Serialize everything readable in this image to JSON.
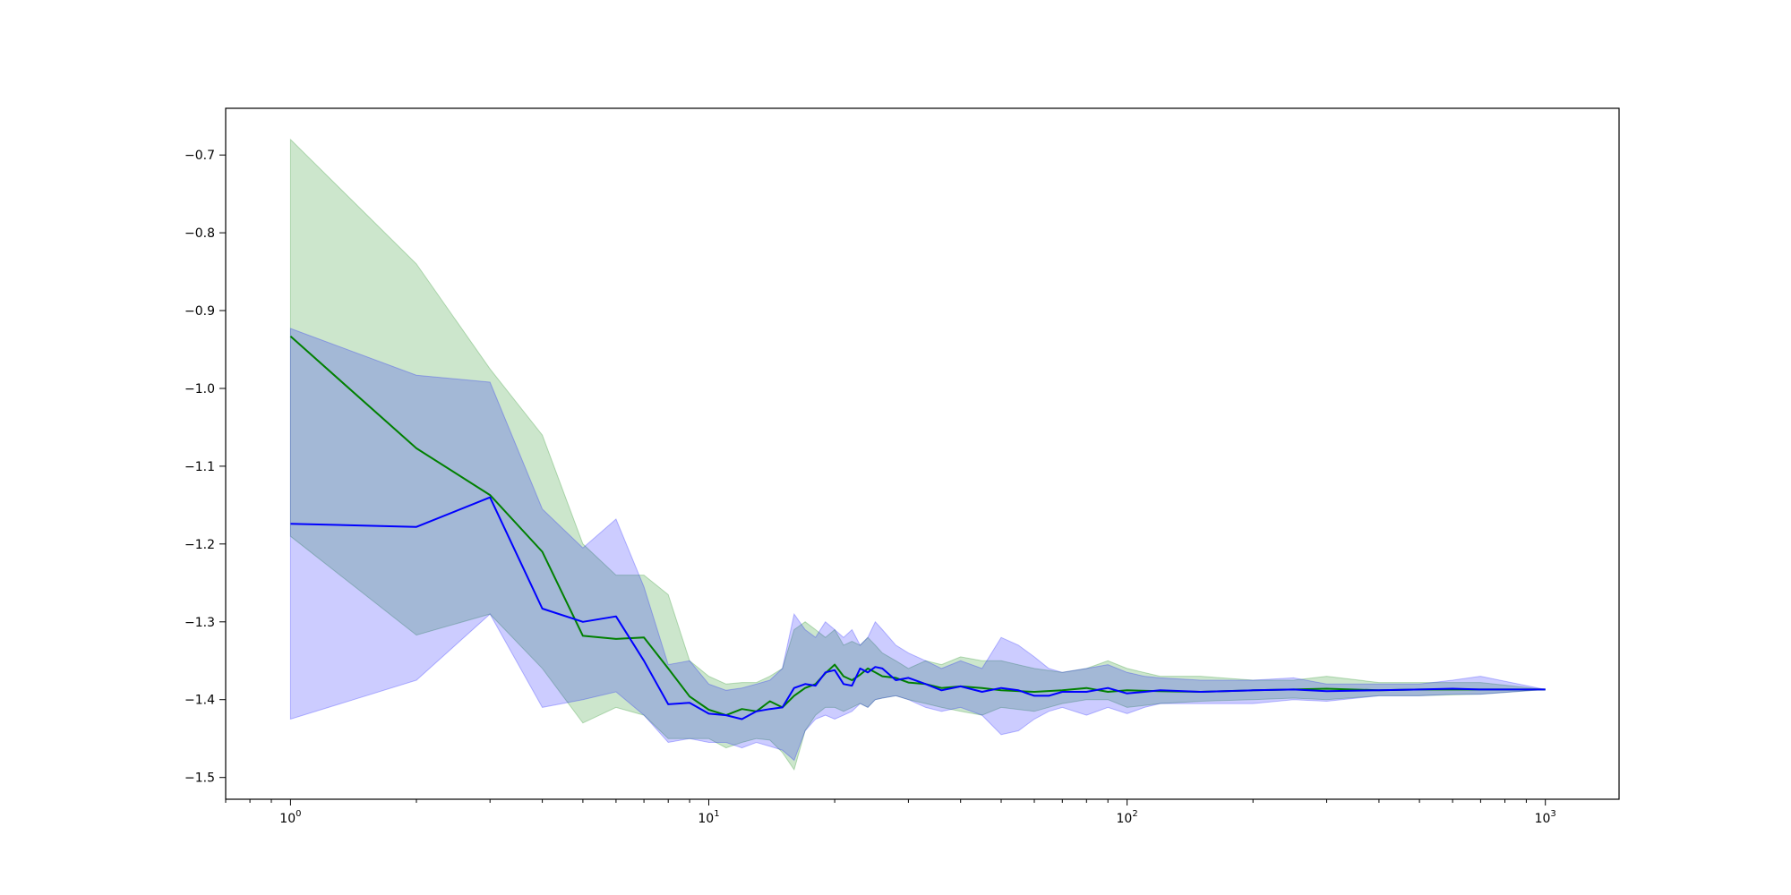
{
  "chart_data": {
    "type": "line",
    "title": "",
    "xlabel": "",
    "ylabel": "",
    "x_scale": "log",
    "xlim": [
      0.7,
      1500
    ],
    "ylim": [
      -1.528,
      -0.64
    ],
    "grid": false,
    "legend": "none",
    "x_ticks": [
      {
        "value": 1,
        "base": "10",
        "exp": "0"
      },
      {
        "value": 10,
        "base": "10",
        "exp": "1"
      },
      {
        "value": 100,
        "base": "10",
        "exp": "2"
      },
      {
        "value": 1000,
        "base": "10",
        "exp": "3"
      }
    ],
    "y_ticks": [
      {
        "value": -0.7,
        "label": "−0.7"
      },
      {
        "value": -0.8,
        "label": "−0.8"
      },
      {
        "value": -0.9,
        "label": "−0.9"
      },
      {
        "value": -1.0,
        "label": "−1.0"
      },
      {
        "value": -1.1,
        "label": "−1.1"
      },
      {
        "value": -1.2,
        "label": "−1.2"
      },
      {
        "value": -1.3,
        "label": "−1.3"
      },
      {
        "value": -1.4,
        "label": "−1.4"
      },
      {
        "value": -1.5,
        "label": "−1.5"
      }
    ],
    "series": [
      {
        "color": "#008000",
        "band_color": "#008000",
        "band_opacity": 0.2,
        "x": [
          1,
          2,
          3,
          4,
          5,
          6,
          7,
          8,
          9,
          10,
          11,
          12,
          13,
          14,
          15,
          16,
          17,
          18,
          19,
          20,
          21,
          22,
          23,
          24,
          25,
          26,
          28,
          30,
          33,
          36,
          40,
          45,
          50,
          60,
          70,
          80,
          90,
          100,
          120,
          150,
          200,
          250,
          300,
          400,
          500,
          700,
          1000
        ],
        "y": [
          -0.933,
          -1.077,
          -1.137,
          -1.21,
          -1.318,
          -1.322,
          -1.32,
          -1.36,
          -1.396,
          -1.413,
          -1.42,
          -1.412,
          -1.415,
          -1.402,
          -1.41,
          -1.395,
          -1.385,
          -1.38,
          -1.366,
          -1.355,
          -1.37,
          -1.375,
          -1.368,
          -1.36,
          -1.365,
          -1.37,
          -1.372,
          -1.378,
          -1.38,
          -1.385,
          -1.383,
          -1.385,
          -1.388,
          -1.39,
          -1.388,
          -1.385,
          -1.39,
          -1.388,
          -1.389,
          -1.39,
          -1.388,
          -1.387,
          -1.386,
          -1.388,
          -1.387,
          -1.387,
          -1.387
        ],
        "lower": [
          -1.19,
          -1.317,
          -1.29,
          -1.36,
          -1.43,
          -1.41,
          -1.42,
          -1.45,
          -1.45,
          -1.45,
          -1.462,
          -1.455,
          -1.45,
          -1.452,
          -1.468,
          -1.49,
          -1.44,
          -1.42,
          -1.41,
          -1.41,
          -1.415,
          -1.41,
          -1.405,
          -1.41,
          -1.4,
          -1.398,
          -1.395,
          -1.4,
          -1.405,
          -1.41,
          -1.415,
          -1.42,
          -1.41,
          -1.415,
          -1.405,
          -1.4,
          -1.4,
          -1.41,
          -1.405,
          -1.402,
          -1.4,
          -1.398,
          -1.4,
          -1.395,
          -1.395,
          -1.393,
          -1.387
        ],
        "upper": [
          -0.68,
          -0.84,
          -0.975,
          -1.06,
          -1.2,
          -1.24,
          -1.24,
          -1.265,
          -1.35,
          -1.37,
          -1.38,
          -1.378,
          -1.378,
          -1.37,
          -1.36,
          -1.31,
          -1.3,
          -1.31,
          -1.32,
          -1.31,
          -1.33,
          -1.325,
          -1.33,
          -1.32,
          -1.33,
          -1.34,
          -1.35,
          -1.36,
          -1.35,
          -1.355,
          -1.345,
          -1.35,
          -1.35,
          -1.36,
          -1.365,
          -1.36,
          -1.35,
          -1.36,
          -1.37,
          -1.37,
          -1.375,
          -1.375,
          -1.37,
          -1.378,
          -1.378,
          -1.378,
          -1.387
        ]
      },
      {
        "color": "#0000ff",
        "band_color": "#0000ff",
        "band_opacity": 0.2,
        "x": [
          1,
          2,
          3,
          4,
          5,
          6,
          7,
          8,
          9,
          10,
          11,
          12,
          13,
          14,
          15,
          16,
          17,
          18,
          19,
          20,
          21,
          22,
          23,
          24,
          25,
          26,
          28,
          30,
          33,
          36,
          40,
          45,
          50,
          55,
          60,
          65,
          70,
          80,
          90,
          100,
          110,
          120,
          150,
          200,
          250,
          300,
          400,
          500,
          600,
          700,
          1000
        ],
        "y": [
          -1.174,
          -1.178,
          -1.14,
          -1.283,
          -1.3,
          -1.293,
          -1.35,
          -1.406,
          -1.404,
          -1.418,
          -1.42,
          -1.425,
          -1.415,
          -1.412,
          -1.41,
          -1.385,
          -1.38,
          -1.382,
          -1.365,
          -1.362,
          -1.38,
          -1.382,
          -1.36,
          -1.365,
          -1.358,
          -1.36,
          -1.375,
          -1.372,
          -1.38,
          -1.388,
          -1.383,
          -1.39,
          -1.385,
          -1.388,
          -1.395,
          -1.395,
          -1.39,
          -1.39,
          -1.385,
          -1.392,
          -1.39,
          -1.388,
          -1.39,
          -1.388,
          -1.387,
          -1.389,
          -1.388,
          -1.387,
          -1.386,
          -1.387,
          -1.387
        ],
        "lower": [
          -1.425,
          -1.375,
          -1.29,
          -1.41,
          -1.4,
          -1.39,
          -1.42,
          -1.455,
          -1.45,
          -1.455,
          -1.455,
          -1.462,
          -1.455,
          -1.46,
          -1.465,
          -1.478,
          -1.44,
          -1.425,
          -1.42,
          -1.425,
          -1.42,
          -1.415,
          -1.405,
          -1.41,
          -1.4,
          -1.398,
          -1.395,
          -1.4,
          -1.41,
          -1.415,
          -1.41,
          -1.42,
          -1.445,
          -1.44,
          -1.425,
          -1.415,
          -1.41,
          -1.42,
          -1.41,
          -1.418,
          -1.41,
          -1.405,
          -1.405,
          -1.405,
          -1.4,
          -1.402,
          -1.395,
          -1.395,
          -1.393,
          -1.393,
          -1.387
        ],
        "upper": [
          -0.923,
          -0.983,
          -0.992,
          -1.155,
          -1.205,
          -1.168,
          -1.255,
          -1.355,
          -1.35,
          -1.38,
          -1.388,
          -1.385,
          -1.38,
          -1.375,
          -1.36,
          -1.29,
          -1.31,
          -1.32,
          -1.3,
          -1.31,
          -1.32,
          -1.31,
          -1.33,
          -1.32,
          -1.3,
          -1.31,
          -1.33,
          -1.34,
          -1.35,
          -1.36,
          -1.35,
          -1.36,
          -1.32,
          -1.33,
          -1.345,
          -1.36,
          -1.365,
          -1.36,
          -1.355,
          -1.365,
          -1.37,
          -1.372,
          -1.375,
          -1.375,
          -1.372,
          -1.38,
          -1.38,
          -1.38,
          -1.375,
          -1.37,
          -1.387
        ]
      }
    ]
  }
}
